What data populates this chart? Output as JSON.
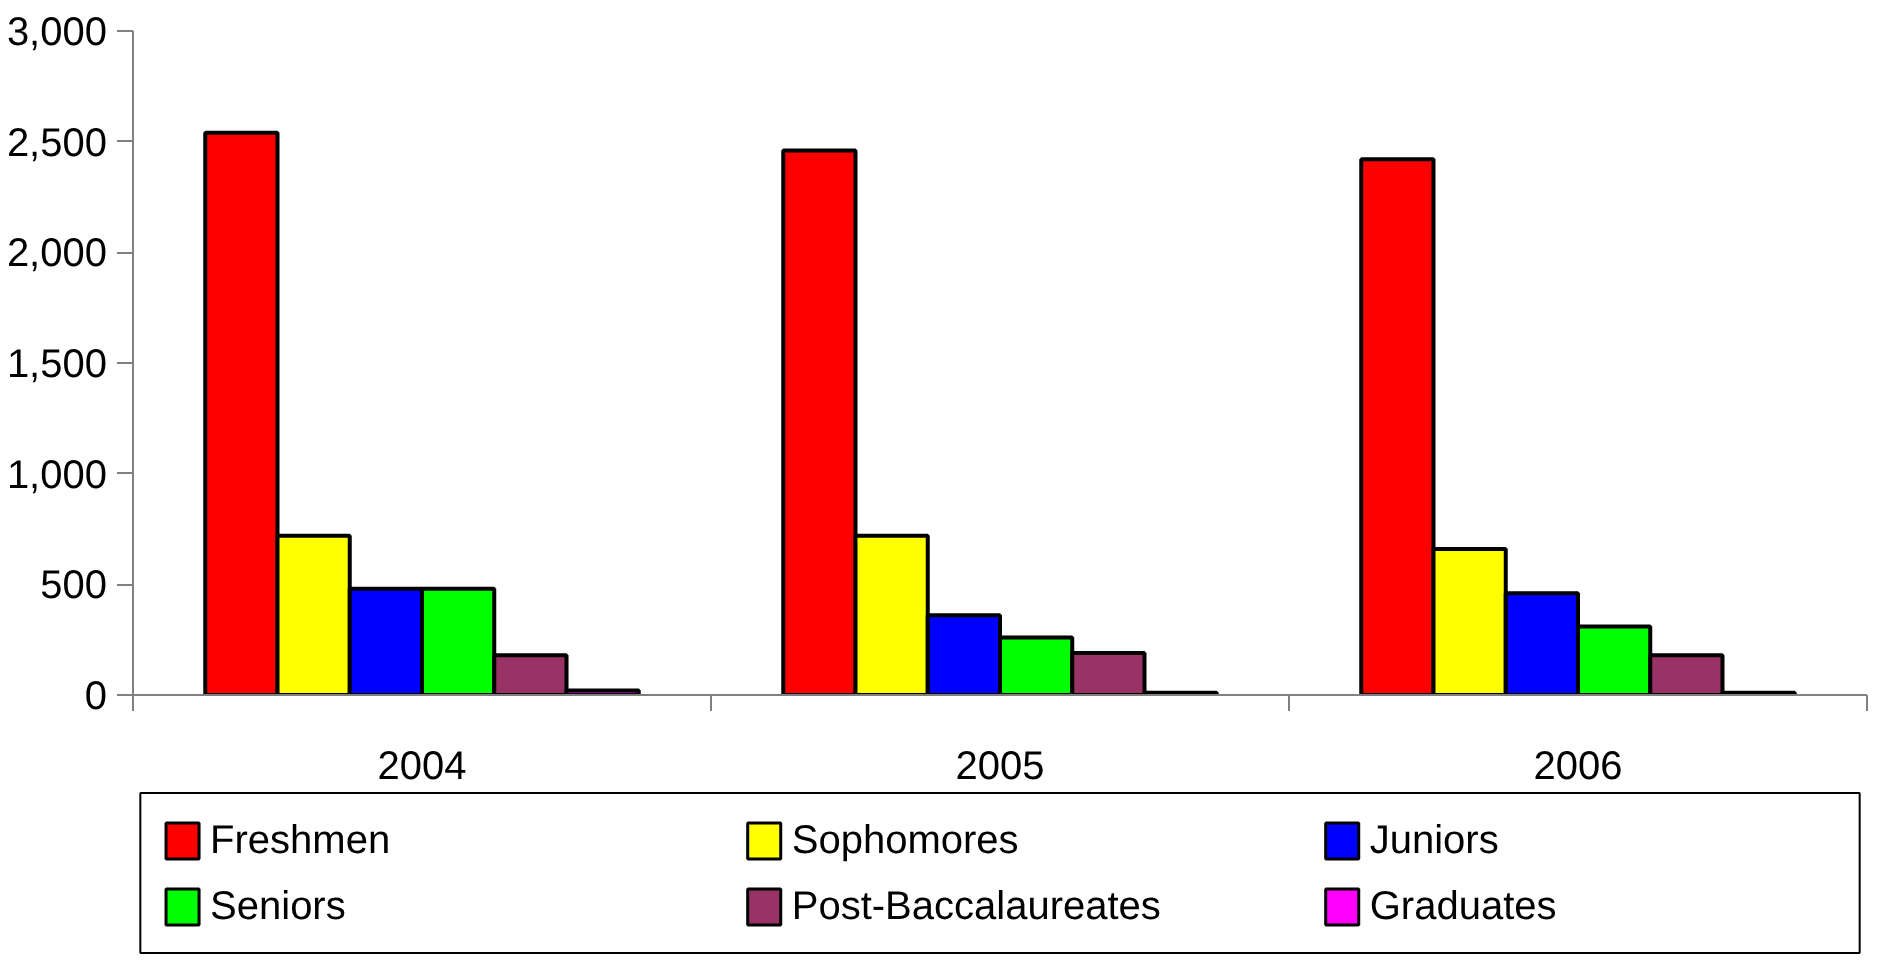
{
  "chart_data": {
    "type": "bar",
    "categories": [
      "2004",
      "2005",
      "2006"
    ],
    "series": [
      {
        "name": "Freshmen",
        "color": "#ff0000",
        "values": [
          2540,
          2460,
          2420
        ]
      },
      {
        "name": "Sophomores",
        "color": "#ffff00",
        "values": [
          720,
          720,
          660
        ]
      },
      {
        "name": "Juniors",
        "color": "#0000ff",
        "values": [
          480,
          360,
          460
        ]
      },
      {
        "name": "Seniors",
        "color": "#00ff00",
        "values": [
          480,
          260,
          310
        ]
      },
      {
        "name": "Post-Baccalaureates",
        "color": "#993366",
        "values": [
          180,
          190,
          180
        ]
      },
      {
        "name": "Graduates",
        "color": "#ff00ff",
        "values": [
          20,
          10,
          10
        ]
      }
    ],
    "ylim": [
      0,
      3000
    ],
    "yticks": [
      0,
      {
        "value": 500,
        "label": "500"
      },
      {
        "value": 1000,
        "label": "1,000"
      },
      {
        "value": 1500,
        "label": "1,500"
      },
      {
        "value": 2000,
        "label": "2,000"
      },
      {
        "value": 2500,
        "label": "2,500"
      },
      {
        "value": 3000,
        "label": "3,000"
      }
    ],
    "grid": false,
    "legend": "bottom"
  }
}
